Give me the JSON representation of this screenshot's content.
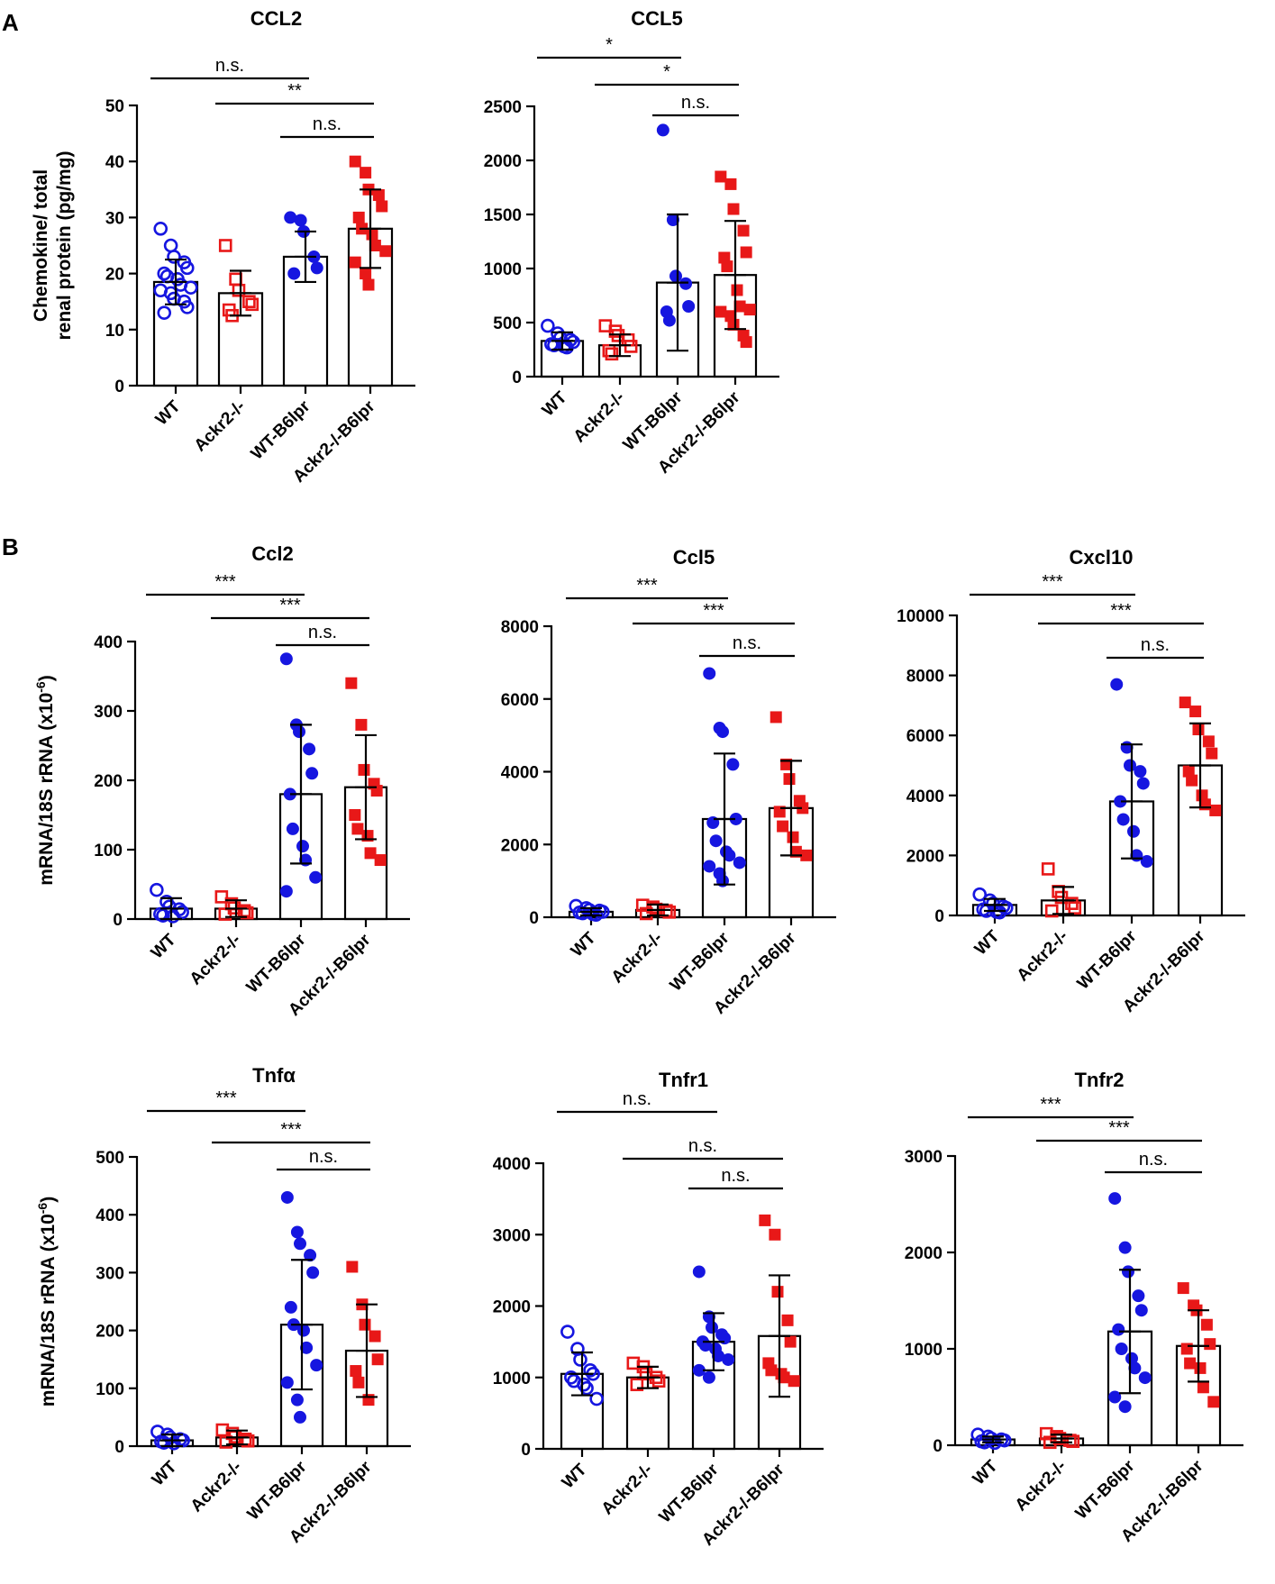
{
  "panel_labels": [
    "A",
    "B"
  ],
  "colors": {
    "wt": "#1616e0",
    "ackr2": "#e81818",
    "axis": "#000000"
  },
  "chart_data": [
    {
      "type": "bar",
      "panel": "A",
      "title": "CCL2",
      "categories": [
        "WT",
        "Ackr2-/-",
        "WT-B6lpr",
        "Ackr2-/-B6lpr"
      ],
      "ylabel_lines": [
        "Chemokine/ total",
        "renal protein (pg/mg)"
      ],
      "ylim": [
        0,
        50
      ],
      "yticks": [
        0,
        10,
        20,
        30,
        40,
        50
      ],
      "ytick_labels": [
        "0",
        "10",
        "20",
        "30",
        "40",
        "50"
      ],
      "means": [
        18.5,
        16.5,
        23,
        28
      ],
      "sd": [
        4,
        4,
        4.5,
        7
      ],
      "points": [
        [
          28,
          25,
          23,
          22,
          21,
          20,
          19.5,
          19,
          18,
          17.5,
          17,
          16.5,
          15.5,
          15,
          14,
          13
        ],
        [
          25,
          19,
          17,
          15,
          14.5,
          13.5,
          12.5
        ],
        [
          30,
          29.5,
          27.5,
          23,
          21,
          20
        ],
        [
          40,
          38,
          35,
          34,
          32,
          30,
          28,
          27,
          25,
          24,
          22,
          20,
          18
        ]
      ],
      "markers": [
        "circle-open",
        "square-open",
        "circle",
        "square"
      ],
      "comparisons": [
        {
          "from": 0,
          "to": 2,
          "label": "n.s."
        },
        {
          "from": 1,
          "to": 3,
          "label": "**"
        },
        {
          "from": 2,
          "to": 3,
          "label": "n.s."
        }
      ]
    },
    {
      "type": "bar",
      "panel": "A",
      "title": "CCL5",
      "categories": [
        "WT",
        "Ackr2-/-",
        "WT-B6lpr",
        "Ackr2-/-B6lpr"
      ],
      "ylabel_lines": [],
      "ylim": [
        0,
        2500
      ],
      "yticks": [
        0,
        500,
        1000,
        1500,
        2000,
        2500
      ],
      "ytick_labels": [
        "0",
        "500",
        "1000",
        "1500",
        "2000",
        "2500"
      ],
      "means": [
        330,
        290,
        870,
        940
      ],
      "sd": [
        80,
        100,
        630,
        500
      ],
      "points": [
        [
          470,
          400,
          360,
          340,
          320,
          300,
          290,
          280,
          270
        ],
        [
          470,
          420,
          380,
          340,
          280,
          240,
          210
        ],
        [
          2280,
          1450,
          930,
          860,
          650,
          600,
          520
        ],
        [
          1850,
          1780,
          1550,
          1350,
          1150,
          1100,
          1020,
          800,
          650,
          620,
          600,
          560,
          480,
          380,
          320
        ]
      ],
      "markers": [
        "circle-open",
        "square-open",
        "circle",
        "square"
      ],
      "comparisons": [
        {
          "from": 0,
          "to": 2,
          "label": "*"
        },
        {
          "from": 1,
          "to": 3,
          "label": "*"
        },
        {
          "from": 2,
          "to": 3,
          "label": "n.s."
        }
      ]
    },
    {
      "type": "bar",
      "panel": "B",
      "title": "Ccl2",
      "categories": [
        "WT",
        "Ackr2-/-",
        "WT-B6lpr",
        "Ackr2-/-B6lpr"
      ],
      "ylabel_lines": [
        "mRNA/18S rRNA (x10",
        "-6",
        ")"
      ],
      "ylim": [
        0,
        400
      ],
      "yticks": [
        0,
        100,
        200,
        300,
        400
      ],
      "ytick_labels": [
        "0",
        "100",
        "200",
        "300",
        "400"
      ],
      "means": [
        15,
        15,
        180,
        190
      ],
      "sd": [
        15,
        12,
        100,
        75
      ],
      "points": [
        [
          42,
          25,
          18,
          14,
          10,
          7,
          5,
          4
        ],
        [
          32,
          22,
          16,
          12,
          9,
          7
        ],
        [
          375,
          280,
          270,
          245,
          210,
          180,
          130,
          105,
          85,
          60,
          40
        ],
        [
          340,
          280,
          215,
          195,
          185,
          150,
          130,
          120,
          95,
          85
        ]
      ],
      "markers": [
        "circle-open",
        "square-open",
        "circle",
        "square"
      ],
      "comparisons": [
        {
          "from": 0,
          "to": 2,
          "label": "***"
        },
        {
          "from": 1,
          "to": 3,
          "label": "***"
        },
        {
          "from": 2,
          "to": 3,
          "label": "n.s."
        }
      ]
    },
    {
      "type": "bar",
      "panel": "B",
      "title": "Ccl5",
      "categories": [
        "WT",
        "Ackr2-/-",
        "WT-B6lpr",
        "Ackr2-/-B6lpr"
      ],
      "ylabel_lines": [],
      "ylim": [
        0,
        8000
      ],
      "yticks": [
        0,
        2000,
        4000,
        6000,
        8000
      ],
      "ytick_labels": [
        "0",
        "2000",
        "4000",
        "6000",
        "8000"
      ],
      "means": [
        150,
        200,
        2700,
        3000
      ],
      "sd": [
        100,
        150,
        1800,
        1300
      ],
      "points": [
        [
          310,
          250,
          200,
          180,
          150,
          130,
          110,
          90,
          70
        ],
        [
          330,
          280,
          220,
          180,
          140,
          100
        ],
        [
          6700,
          5200,
          5100,
          4200,
          2700,
          2600,
          2100,
          1800,
          1700,
          1500,
          1400,
          1200,
          1000
        ],
        [
          5500,
          4200,
          3800,
          3200,
          3000,
          2900,
          2500,
          2200,
          1800,
          1700
        ]
      ],
      "markers": [
        "circle-open",
        "square-open",
        "circle",
        "square"
      ],
      "comparisons": [
        {
          "from": 0,
          "to": 2,
          "label": "***"
        },
        {
          "from": 1,
          "to": 3,
          "label": "***"
        },
        {
          "from": 2,
          "to": 3,
          "label": "n.s."
        }
      ]
    },
    {
      "type": "bar",
      "panel": "B",
      "title": "Cxcl10",
      "categories": [
        "WT",
        "Ackr2-/-",
        "WT-B6lpr",
        "Ackr2-/-B6lpr"
      ],
      "ylabel_lines": [],
      "ylim": [
        0,
        10000
      ],
      "yticks": [
        0,
        2000,
        4000,
        6000,
        8000,
        10000
      ],
      "ytick_labels": [
        "0",
        "2000",
        "4000",
        "6000",
        "8000",
        "10000"
      ],
      "means": [
        350,
        500,
        3800,
        5000
      ],
      "sd": [
        200,
        450,
        1900,
        1400
      ],
      "points": [
        [
          700,
          500,
          400,
          300,
          250,
          200,
          150,
          120,
          100
        ],
        [
          1550,
          800,
          600,
          400,
          250,
          150
        ],
        [
          7700,
          5600,
          5000,
          4800,
          4400,
          3800,
          3200,
          2800,
          2000,
          1800
        ],
        [
          7100,
          6800,
          6200,
          5800,
          5400,
          4800,
          4500,
          4000,
          3700,
          3500
        ]
      ],
      "markers": [
        "circle-open",
        "square-open",
        "circle",
        "square"
      ],
      "comparisons": [
        {
          "from": 0,
          "to": 2,
          "label": "***"
        },
        {
          "from": 1,
          "to": 3,
          "label": "***"
        },
        {
          "from": 2,
          "to": 3,
          "label": "n.s."
        }
      ]
    },
    {
      "type": "bar",
      "panel": "B",
      "title": "Tnfα",
      "categories": [
        "WT",
        "Ackr2-/-",
        "WT-B6lpr",
        "Ackr2-/-B6lpr"
      ],
      "ylabel_lines": [
        "mRNA/18S rRNA (x10",
        "-6",
        ")"
      ],
      "ylim": [
        0,
        500
      ],
      "yticks": [
        0,
        100,
        200,
        300,
        400,
        500
      ],
      "ytick_labels": [
        "0",
        "100",
        "200",
        "300",
        "400",
        "500"
      ],
      "means": [
        10,
        15,
        210,
        165
      ],
      "sd": [
        10,
        12,
        112,
        80
      ],
      "points": [
        [
          25,
          20,
          15,
          12,
          10,
          8,
          6,
          5
        ],
        [
          28,
          22,
          16,
          12,
          9,
          7
        ],
        [
          430,
          370,
          350,
          330,
          300,
          240,
          210,
          200,
          170,
          140,
          110,
          80,
          50
        ],
        [
          310,
          245,
          210,
          190,
          150,
          130,
          110,
          80
        ]
      ],
      "markers": [
        "circle-open",
        "square-open",
        "circle",
        "square"
      ],
      "comparisons": [
        {
          "from": 0,
          "to": 2,
          "label": "***"
        },
        {
          "from": 1,
          "to": 3,
          "label": "***"
        },
        {
          "from": 2,
          "to": 3,
          "label": "n.s."
        }
      ]
    },
    {
      "type": "bar",
      "panel": "B",
      "title": "Tnfr1",
      "categories": [
        "WT",
        "Ackr2-/-",
        "WT-B6lpr",
        "Ackr2-/-B6lpr"
      ],
      "ylabel_lines": [],
      "ylim": [
        0,
        4000
      ],
      "yticks": [
        0,
        1000,
        2000,
        3000,
        4000
      ],
      "ytick_labels": [
        "0",
        "1000",
        "2000",
        "3000",
        "4000"
      ],
      "means": [
        1050,
        1000,
        1500,
        1580
      ],
      "sd": [
        300,
        150,
        400,
        850
      ],
      "points": [
        [
          1640,
          1400,
          1250,
          1100,
          1050,
          1000,
          950,
          900,
          850,
          700
        ],
        [
          1200,
          1150,
          1050,
          1000,
          950,
          900
        ],
        [
          2480,
          1850,
          1700,
          1600,
          1550,
          1500,
          1450,
          1400,
          1300,
          1250,
          1100,
          1000
        ],
        [
          3200,
          3000,
          2200,
          1800,
          1500,
          1200,
          1100,
          1050,
          1000,
          950
        ]
      ],
      "markers": [
        "circle-open",
        "square-open",
        "circle",
        "square"
      ],
      "comparisons": [
        {
          "from": 0,
          "to": 2,
          "label": "n.s."
        },
        {
          "from": 1,
          "to": 3,
          "label": "n.s."
        },
        {
          "from": 2,
          "to": 3,
          "label": "n.s."
        }
      ]
    },
    {
      "type": "bar",
      "panel": "B",
      "title": "Tnfr2",
      "categories": [
        "WT",
        "Ackr2-/-",
        "WT-B6lpr",
        "Ackr2-/-B6lpr"
      ],
      "ylabel_lines": [],
      "ylim": [
        0,
        3000
      ],
      "yticks": [
        0,
        1000,
        2000,
        3000
      ],
      "ytick_labels": [
        "0",
        "1000",
        "2000",
        "3000"
      ],
      "means": [
        60,
        70,
        1180,
        1030
      ],
      "sd": [
        30,
        40,
        640,
        370
      ],
      "points": [
        [
          110,
          90,
          70,
          60,
          50,
          40,
          30,
          25
        ],
        [
          120,
          90,
          70,
          50,
          40,
          30
        ],
        [
          2560,
          2050,
          1800,
          1550,
          1400,
          1200,
          1000,
          900,
          800,
          700,
          500,
          400
        ],
        [
          1630,
          1450,
          1400,
          1250,
          1050,
          1000,
          850,
          800,
          600,
          450
        ]
      ],
      "markers": [
        "circle-open",
        "square-open",
        "circle",
        "square"
      ],
      "comparisons": [
        {
          "from": 0,
          "to": 2,
          "label": "***"
        },
        {
          "from": 1,
          "to": 3,
          "label": "***"
        },
        {
          "from": 2,
          "to": 3,
          "label": "n.s."
        }
      ]
    }
  ]
}
